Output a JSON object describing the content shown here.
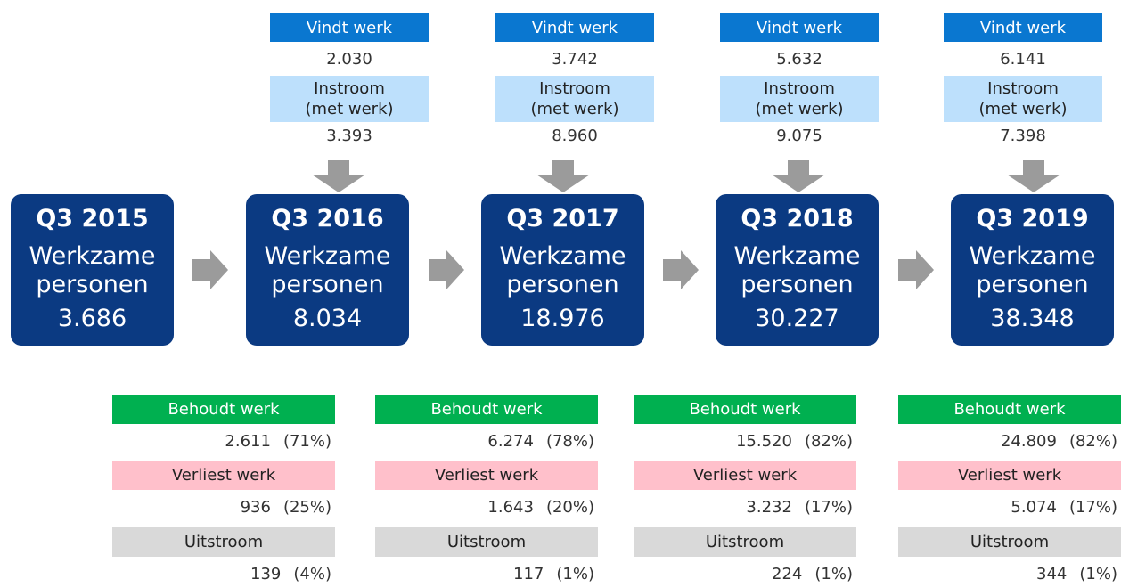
{
  "flows_in": [
    {
      "label": "Vindt werk",
      "value": "2.030",
      "label2": [
        "Instroom",
        "(met werk)"
      ],
      "value2": "3.393"
    },
    {
      "label": "Vindt werk",
      "value": "3.742",
      "label2": [
        "Instroom",
        "(met werk)"
      ],
      "value2": "8.960"
    },
    {
      "label": "Vindt werk",
      "value": "5.632",
      "label2": [
        "Instroom",
        "(met werk)"
      ],
      "value2": "9.075"
    },
    {
      "label": "Vindt werk",
      "value": "6.141",
      "label2": [
        "Instroom",
        "(met werk)"
      ],
      "value2": "7.398"
    }
  ],
  "nodes": [
    {
      "title": "Q3 2015",
      "lines": [
        "Werkzame",
        "personen"
      ],
      "value": "3.686"
    },
    {
      "title": "Q3 2016",
      "lines": [
        "Werkzame",
        "personen"
      ],
      "value": "8.034"
    },
    {
      "title": "Q3 2017",
      "lines": [
        "Werkzame",
        "personen"
      ],
      "value": "18.976"
    },
    {
      "title": "Q3 2018",
      "lines": [
        "Werkzame",
        "personen"
      ],
      "value": "30.227"
    },
    {
      "title": "Q3 2019",
      "lines": [
        "Werkzame",
        "personen"
      ],
      "value": "38.348"
    }
  ],
  "flows_out": [
    [
      {
        "label": "Behoudt werk",
        "count": "2.611",
        "pct": "(71%)"
      },
      {
        "label": "Verliest werk",
        "count": "936",
        "pct": "(25%)"
      },
      {
        "label": "Uitstroom",
        "count": "139",
        "pct": "(4%)"
      }
    ],
    [
      {
        "label": "Behoudt werk",
        "count": "6.274",
        "pct": "(78%)"
      },
      {
        "label": "Verliest werk",
        "count": "1.643",
        "pct": "(20%)"
      },
      {
        "label": "Uitstroom",
        "count": "117",
        "pct": "(1%)"
      }
    ],
    [
      {
        "label": "Behoudt werk",
        "count": "15.520",
        "pct": "(82%)"
      },
      {
        "label": "Verliest werk",
        "count": "3.232",
        "pct": "(17%)"
      },
      {
        "label": "Uitstroom",
        "count": "224",
        "pct": "(1%)"
      }
    ],
    [
      {
        "label": "Behoudt werk",
        "count": "24.809",
        "pct": "(82%)"
      },
      {
        "label": "Verliest werk",
        "count": "5.074",
        "pct": "(17%)"
      },
      {
        "label": "Uitstroom",
        "count": "344",
        "pct": "(1%)"
      }
    ]
  ]
}
